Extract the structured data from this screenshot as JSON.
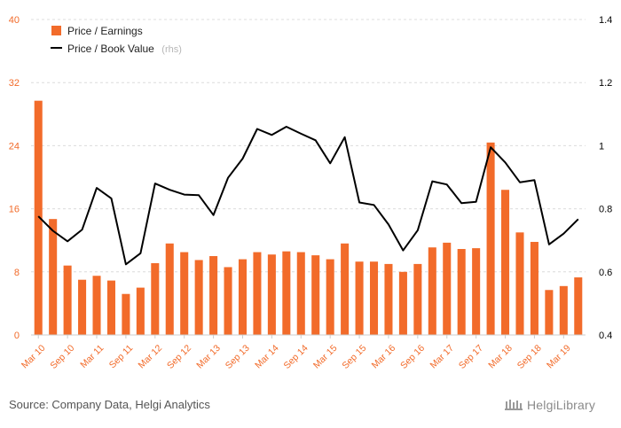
{
  "footer": {
    "source": "Source: Company Data, Helgi Analytics",
    "logo_text": "HelgiLibrary"
  },
  "colors": {
    "bar": "#f26b2a",
    "line": "#000000",
    "left_axis_text": "#f26b2a",
    "grid": "#dcdcdc"
  },
  "chart_data": {
    "type": "bar",
    "categories": [
      "Mar 10",
      "Jun 10",
      "Sep 10",
      "Dec 10",
      "Mar 11",
      "Jun 11",
      "Sep 11",
      "Dec 11",
      "Mar 12",
      "Jun 12",
      "Sep 12",
      "Dec 12",
      "Mar 13",
      "Jun 13",
      "Sep 13",
      "Dec 13",
      "Mar 14",
      "Jun 14",
      "Sep 14",
      "Dec 14",
      "Mar 15",
      "Jun 15",
      "Sep 15",
      "Dec 15",
      "Mar 16",
      "Jun 16",
      "Sep 16",
      "Dec 16",
      "Mar 17",
      "Jun 17",
      "Sep 17",
      "Dec 17",
      "Mar 18",
      "Jun 18",
      "Sep 18",
      "Dec 18",
      "Mar 19",
      "Jun 19"
    ],
    "x_tick_labels": [
      "Mar 10",
      "Sep 10",
      "Mar 11",
      "Sep 11",
      "Mar 12",
      "Sep 12",
      "Mar 13",
      "Sep 13",
      "Mar 14",
      "Sep 14",
      "Mar 15",
      "Sep 15",
      "Mar 16",
      "Sep 16",
      "Mar 17",
      "Sep 17",
      "Mar 18",
      "Sep 18",
      "Mar 19"
    ],
    "series": [
      {
        "name": "Price / Earnings",
        "type": "bar",
        "axis": "left",
        "values": [
          29.7,
          14.7,
          8.8,
          7.0,
          7.5,
          6.9,
          5.2,
          6.0,
          9.1,
          11.6,
          10.5,
          9.5,
          10.0,
          8.6,
          9.6,
          10.5,
          10.2,
          10.6,
          10.5,
          10.1,
          9.6,
          11.6,
          9.3,
          9.3,
          9.0,
          8.0,
          9.0,
          11.1,
          11.7,
          10.9,
          11.0,
          24.4,
          18.4,
          13.0,
          11.8,
          5.7,
          6.2,
          7.3
        ]
      },
      {
        "name": "Price / Book Value",
        "type": "line",
        "axis": "right",
        "values": [
          0.776,
          0.73,
          0.697,
          0.734,
          0.866,
          0.833,
          0.624,
          0.659,
          0.88,
          0.86,
          0.845,
          0.843,
          0.78,
          0.898,
          0.959,
          1.053,
          1.034,
          1.06,
          1.038,
          1.017,
          0.944,
          1.027,
          0.82,
          0.812,
          0.75,
          0.668,
          0.732,
          0.887,
          0.877,
          0.818,
          0.822,
          0.995,
          0.947,
          0.884,
          0.891,
          0.687,
          0.721,
          0.767
        ]
      }
    ],
    "legend": {
      "entries": [
        "Price / Earnings",
        "Price / Book Value"
      ],
      "rhs_tag": "(rhs)",
      "position": "top-left"
    },
    "y_left": {
      "ylim": [
        0,
        40
      ],
      "ticks": [
        "0",
        "8",
        "16",
        "24",
        "32",
        "40"
      ]
    },
    "y_right": {
      "ylim": [
        0.4,
        1.4
      ],
      "ticks": [
        "0.4",
        "0.6",
        "0.8",
        "1",
        "1.2",
        "1.4"
      ]
    },
    "grid": true,
    "title": "",
    "xlabel": "",
    "ylabel": ""
  }
}
